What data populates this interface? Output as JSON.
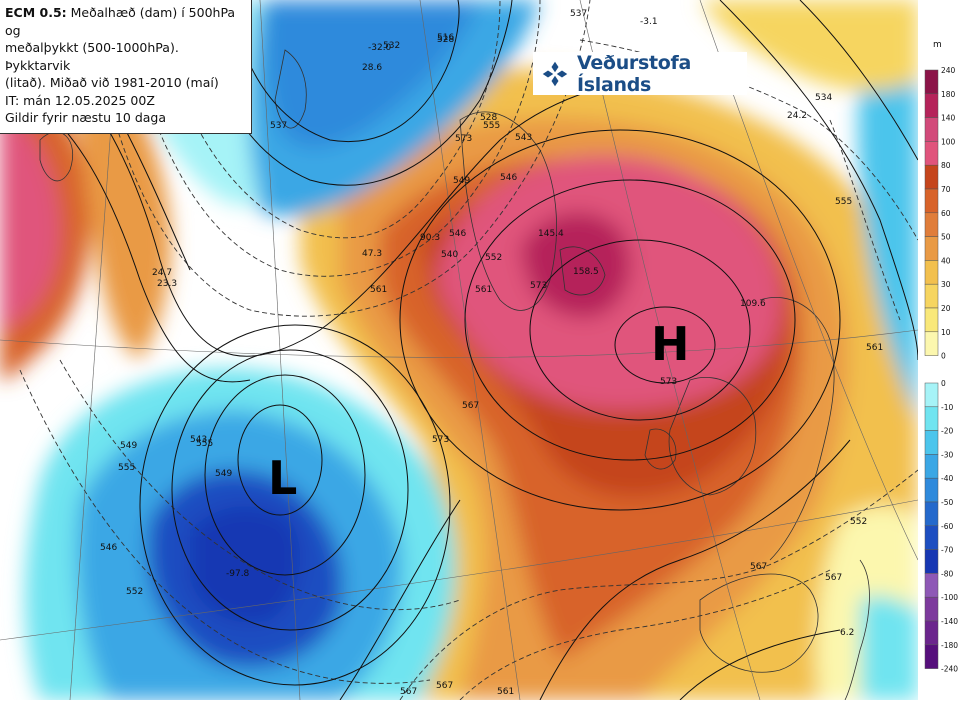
{
  "info": {
    "model": "ECM 0.5:",
    "line1": "Meðalhæð (dam) í 500hPa og",
    "line2": "meðalþykkt (500-1000hPa). Þykktarvik",
    "line3": "(litað). Miðað við 1981-2010 (maí)",
    "line4": "IT: mán 12.05.2025 00Z",
    "line5": "Gildir fyrir næstu 10 daga"
  },
  "logo": {
    "text": "Veðurstofa Íslands"
  },
  "pressure": {
    "high": "H",
    "low": "L"
  },
  "contour_labels": [
    "528",
    "532",
    "516",
    "537",
    "543",
    "549",
    "555",
    "561",
    "567",
    "573",
    "546",
    "552",
    "549",
    "555",
    "561",
    "543",
    "546",
    "552",
    "561",
    "567",
    "573",
    "537",
    "549",
    "555",
    "552",
    "567",
    "567",
    "528",
    "573",
    "540",
    "546",
    "534",
    "555",
    "561",
    "567",
    "573"
  ],
  "value_labels": [
    "-32.0",
    "28.6",
    "24.7",
    "23.3",
    "47.3",
    "90.3",
    "145.4",
    "158.5",
    "109.6",
    "24.2",
    "-97.8",
    "6.2",
    "-3.1"
  ],
  "legend": {
    "unit": "m",
    "positive": [
      "240",
      "180",
      "140",
      "100",
      "80",
      "70",
      "60",
      "50",
      "40",
      "30",
      "20",
      "10",
      "0"
    ],
    "negative": [
      "0",
      "-10",
      "-20",
      "-30",
      "-40",
      "-50",
      "-60",
      "-70",
      "-80",
      "-100",
      "-140",
      "-180",
      "-240"
    ]
  },
  "colors": {
    "pos": [
      "#8c1448",
      "#b5235a",
      "#d24a7a",
      "#e0547c",
      "#c5451c",
      "#d8632a",
      "#e07d3a",
      "#e99a45",
      "#f2c04e",
      "#f6d560",
      "#f9e879",
      "#fcf7ae",
      "#ffffff"
    ],
    "neg": [
      "#ffffff",
      "#a6f3f7",
      "#70e4f0",
      "#4cc5ec",
      "#3ba7e5",
      "#2f8adc",
      "#2469cc",
      "#1d4ec1",
      "#1737b3",
      "#8e58b6",
      "#7d3a9d",
      "#6b258d",
      "#560f7c"
    ]
  }
}
